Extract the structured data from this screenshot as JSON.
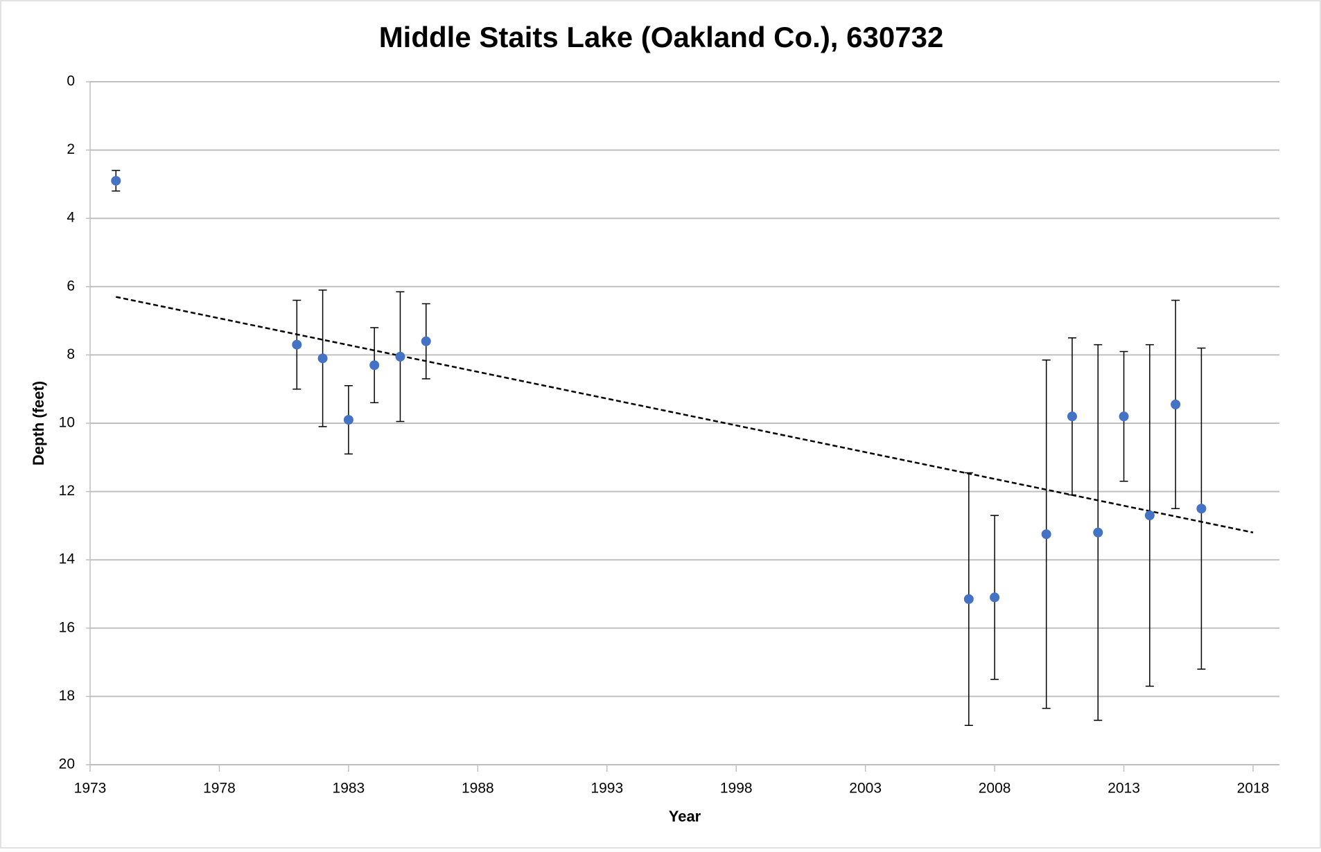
{
  "chart_data": {
    "type": "scatter",
    "title": "Middle Staits Lake (Oakland Co.), 630732",
    "x_label": "Year",
    "y_label": "Depth (feet)",
    "xlim": [
      1973,
      2018
    ],
    "xticks": [
      1973,
      1978,
      1983,
      1988,
      1993,
      1998,
      2003,
      2008,
      2013,
      2018
    ],
    "ylim": [
      0,
      20
    ],
    "yticks": [
      0,
      2,
      4,
      6,
      8,
      10,
      12,
      14,
      16,
      18,
      20
    ],
    "y_inverted": true,
    "grid": true,
    "series": [
      {
        "color": "#4472c4",
        "x": [
          1974,
          1981,
          1982,
          1983,
          1984,
          1985,
          1986,
          2007,
          2008,
          2010,
          2011,
          2012,
          2013,
          2014,
          2015,
          2016
        ],
        "values": [
          2.9,
          7.7,
          8.1,
          9.9,
          8.3,
          8.05,
          7.6,
          15.15,
          15.1,
          13.25,
          9.8,
          13.2,
          9.8,
          12.7,
          9.45,
          12.5
        ],
        "errors": [
          0.3,
          1.3,
          2.0,
          1.0,
          1.1,
          1.9,
          1.1,
          3.7,
          2.4,
          5.1,
          2.3,
          5.5,
          1.9,
          5.0,
          3.05,
          4.7
        ]
      }
    ],
    "trendline": {
      "color": "#000000",
      "x": [
        1974,
        2018
      ],
      "values": [
        6.3,
        13.2
      ]
    }
  }
}
